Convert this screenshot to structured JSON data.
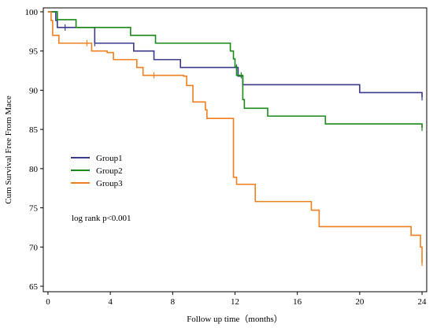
{
  "chart_data": {
    "type": "line",
    "step": true,
    "xlabel": "Follow up time（months）",
    "ylabel": "Cum Survival Free From Mace",
    "xlim": [
      -0.3,
      24.3
    ],
    "ylim": [
      64.3,
      100.5
    ],
    "xticks": [
      0,
      4,
      8,
      12,
      16,
      20,
      24
    ],
    "yticks": [
      65,
      70,
      75,
      80,
      85,
      90,
      95,
      100
    ],
    "legend_position": "center-left",
    "annotation": "log rank p<0.001",
    "series": [
      {
        "name": "Group1",
        "color": "#3a3a8c",
        "points": [
          [
            0,
            100
          ],
          [
            0.5,
            98.9
          ],
          [
            0.6,
            98
          ],
          [
            3,
            96
          ],
          [
            5.5,
            95
          ],
          [
            6.8,
            93.9
          ],
          [
            8.5,
            92.9
          ],
          [
            12.2,
            91.8
          ],
          [
            12.5,
            90.7
          ],
          [
            20,
            89.7
          ],
          [
            24,
            89.1
          ]
        ],
        "censor_x": [
          1.1,
          3.0,
          12.1,
          24
        ]
      },
      {
        "name": "Group2",
        "color": "#1a8a1a",
        "points": [
          [
            0,
            100
          ],
          [
            0.6,
            99
          ],
          [
            1.8,
            98
          ],
          [
            5.3,
            97
          ],
          [
            6.9,
            96
          ],
          [
            11.7,
            95
          ],
          [
            11.9,
            94
          ],
          [
            12,
            93
          ],
          [
            12.1,
            91.9
          ],
          [
            12.5,
            88.8
          ],
          [
            12.6,
            87.7
          ],
          [
            14.1,
            86.7
          ],
          [
            17.8,
            85.7
          ],
          [
            24,
            85.2
          ]
        ],
        "censor_x": [
          12.4,
          24
        ]
      },
      {
        "name": "Group3",
        "color": "#f07f1e",
        "points": [
          [
            0,
            100
          ],
          [
            0.2,
            98.9
          ],
          [
            0.3,
            97
          ],
          [
            0.7,
            96
          ],
          [
            2.8,
            95
          ],
          [
            3.8,
            94.8
          ],
          [
            4.2,
            93.9
          ],
          [
            5.7,
            92.9
          ],
          [
            6.1,
            91.9
          ],
          [
            8.7,
            91.8
          ],
          [
            8.9,
            90.6
          ],
          [
            9.3,
            88.5
          ],
          [
            10.1,
            87.5
          ],
          [
            10.2,
            86.4
          ],
          [
            11.9,
            78.9
          ],
          [
            12.1,
            78
          ],
          [
            13.3,
            75.8
          ],
          [
            16.9,
            74.7
          ],
          [
            17.4,
            72.6
          ],
          [
            23.3,
            71.5
          ],
          [
            23.9,
            70
          ],
          [
            24,
            68
          ]
        ],
        "censor_x": [
          2.5,
          6.8,
          24
        ]
      }
    ]
  }
}
